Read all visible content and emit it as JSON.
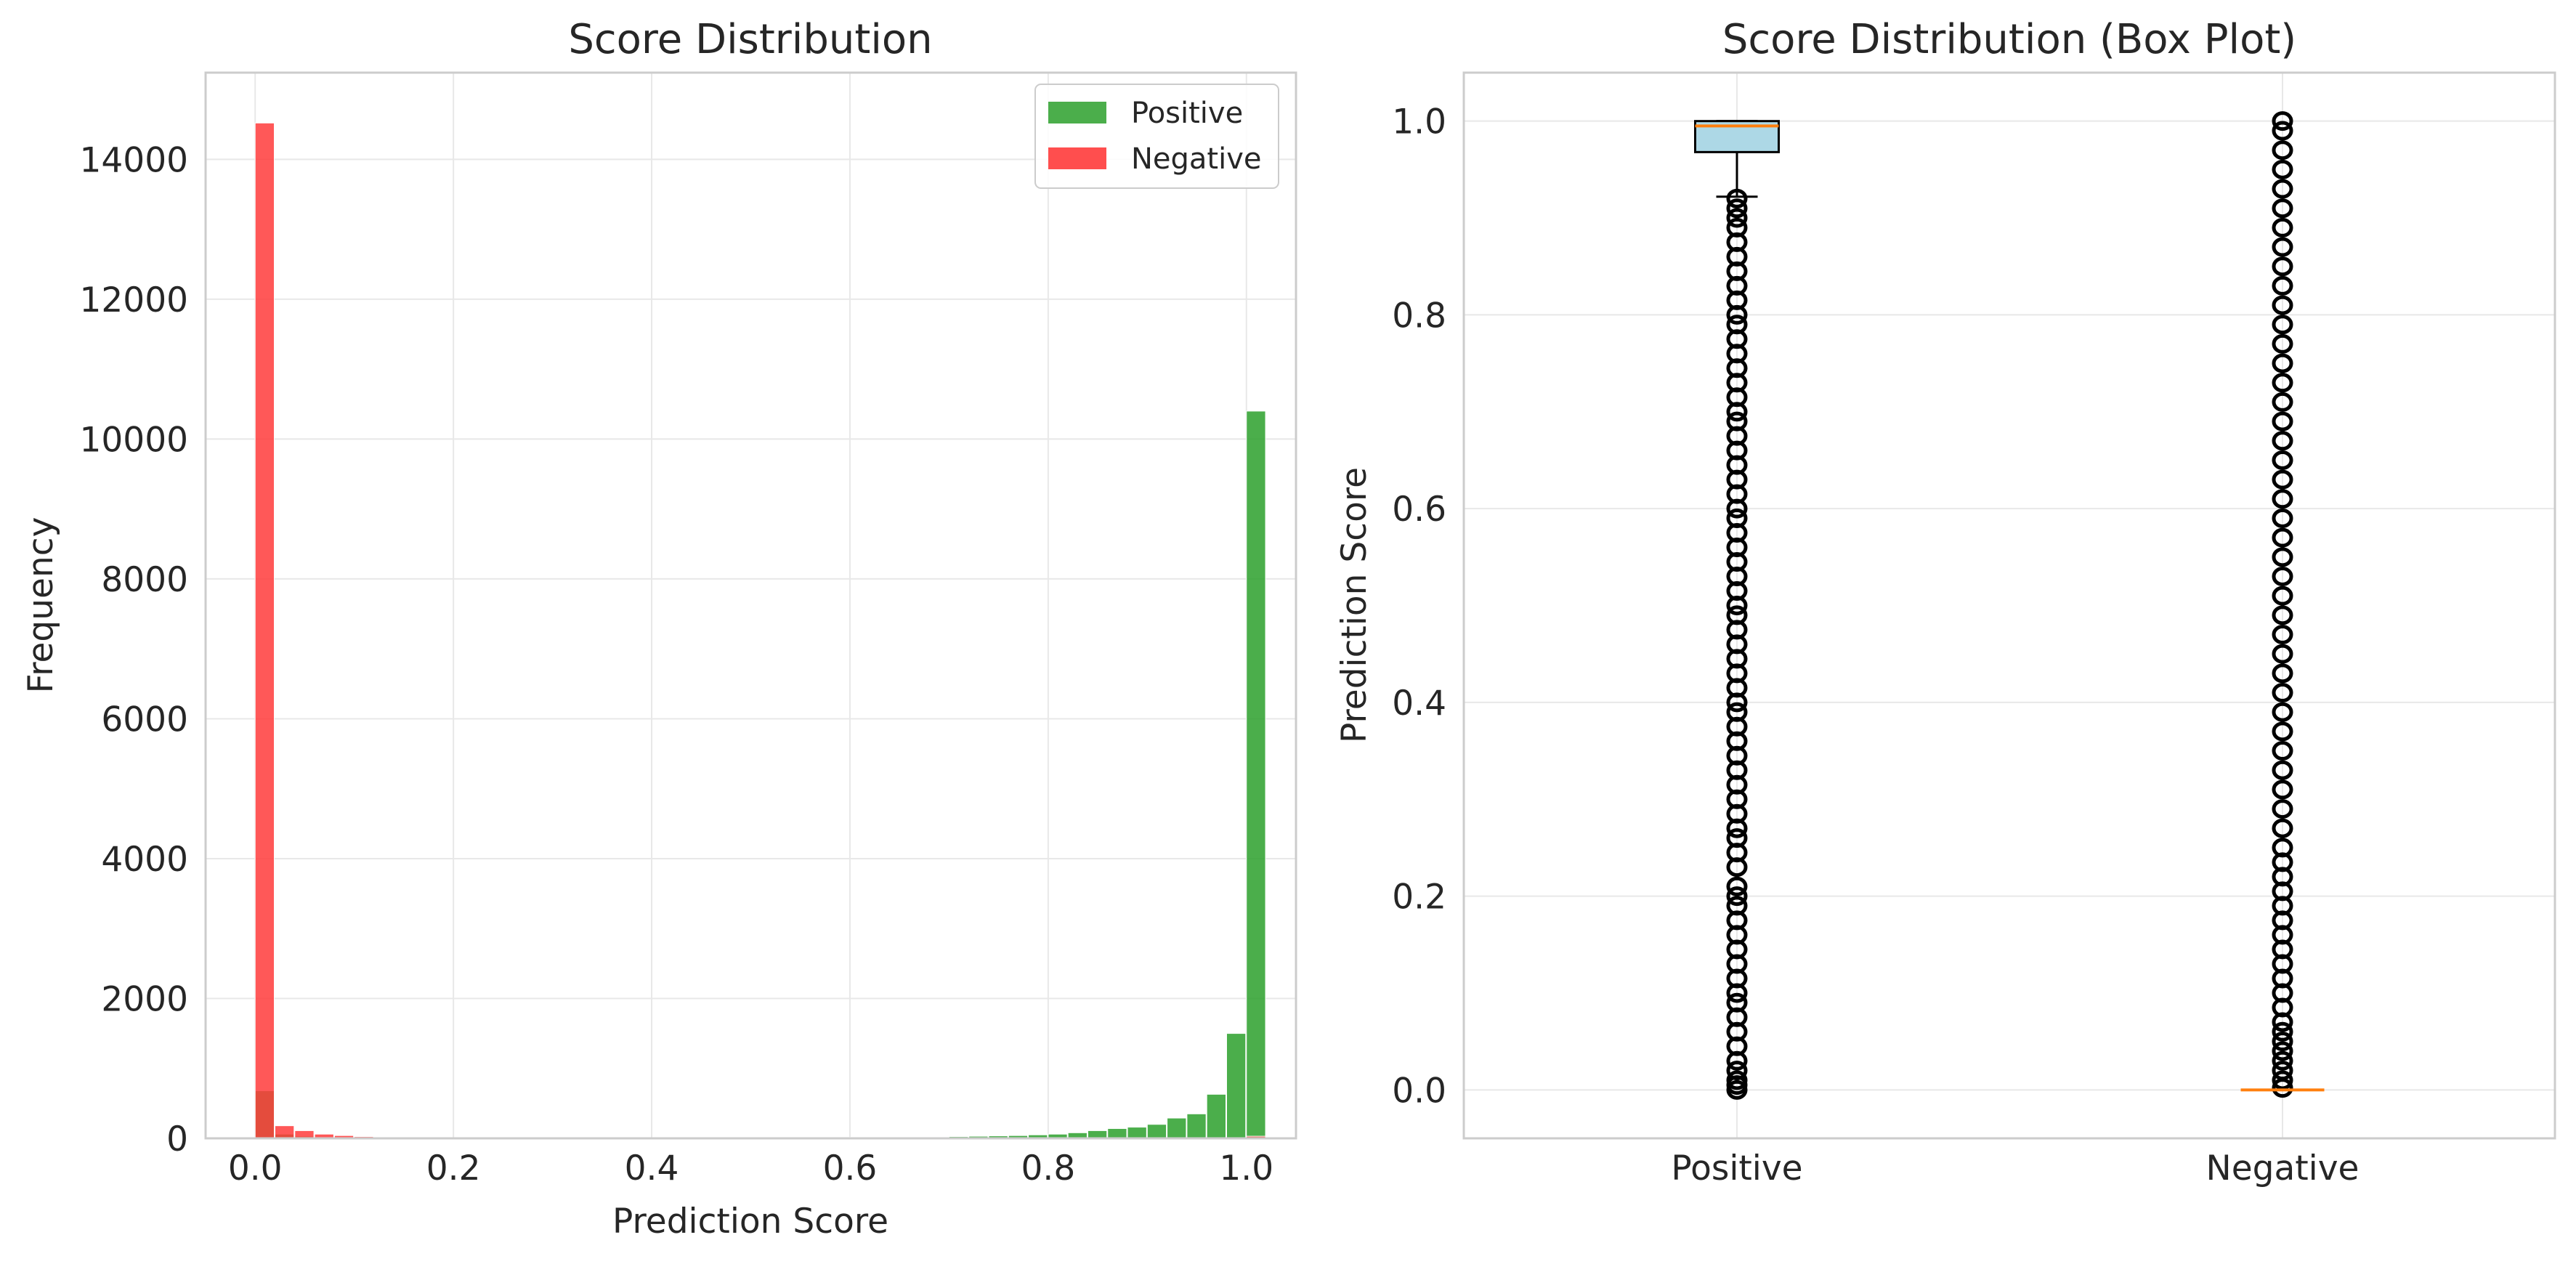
{
  "chart_data": [
    {
      "type": "bar",
      "title": "Score Distribution",
      "xlabel": "Prediction Score",
      "ylabel": "Frequency",
      "xlim": [
        -0.05,
        1.05
      ],
      "ylim": [
        0,
        15240
      ],
      "xticks": [
        "0.0",
        "0.2",
        "0.4",
        "0.6",
        "0.8",
        "1.0"
      ],
      "yticks": [
        "0",
        "2000",
        "4000",
        "6000",
        "8000",
        "10000",
        "12000",
        "14000"
      ],
      "grid": true,
      "legend": {
        "position": "top-right",
        "entries": [
          "Positive",
          "Negative"
        ]
      },
      "bin_edges": [
        0.0,
        0.02,
        0.04,
        0.06,
        0.08,
        0.1,
        0.12,
        0.14,
        0.16,
        0.18,
        0.2,
        0.22,
        0.24,
        0.26,
        0.28,
        0.3,
        0.32,
        0.34,
        0.36,
        0.38,
        0.4,
        0.42,
        0.44,
        0.46,
        0.48,
        0.5,
        0.52,
        0.54,
        0.56,
        0.58,
        0.6,
        0.62,
        0.64,
        0.66,
        0.68,
        0.7,
        0.72,
        0.74,
        0.76,
        0.78,
        0.8,
        0.82,
        0.84,
        0.86,
        0.88,
        0.9,
        0.92,
        0.94,
        0.96,
        0.98,
        1.0
      ],
      "series": [
        {
          "name": "Positive",
          "color": "#2ca02c",
          "values": [
            680,
            60,
            30,
            20,
            15,
            12,
            10,
            10,
            8,
            8,
            8,
            8,
            8,
            8,
            8,
            8,
            8,
            8,
            8,
            8,
            8,
            8,
            8,
            8,
            8,
            10,
            10,
            10,
            12,
            12,
            15,
            15,
            15,
            18,
            20,
            25,
            30,
            35,
            40,
            50,
            60,
            80,
            110,
            140,
            160,
            200,
            290,
            350,
            630,
            1500,
            10400
          ]
        },
        {
          "name": "Negative",
          "color": "#ff3b3b",
          "values": [
            14520,
            180,
            110,
            60,
            40,
            25,
            20,
            15,
            10,
            10,
            8,
            8,
            6,
            6,
            5,
            5,
            5,
            5,
            5,
            5,
            5,
            5,
            5,
            5,
            5,
            5,
            5,
            5,
            5,
            5,
            5,
            5,
            5,
            5,
            5,
            5,
            5,
            5,
            5,
            5,
            5,
            5,
            5,
            5,
            5,
            5,
            5,
            5,
            5,
            5,
            30
          ]
        }
      ]
    },
    {
      "type": "box",
      "title": "Score Distribution (Box Plot)",
      "xlabel": "",
      "ylabel": "Prediction Score",
      "ylim": [
        -0.05,
        1.05
      ],
      "yticks": [
        "0.0",
        "0.2",
        "0.4",
        "0.6",
        "0.8",
        "1.0"
      ],
      "categories": [
        "Positive",
        "Negative"
      ],
      "grid": true,
      "box_color": "#add8e6",
      "median_color": "#ff7f0e",
      "boxes": [
        {
          "name": "Positive",
          "q1": 0.968,
          "median": 0.995,
          "q3": 1.0,
          "whisker_low": 0.922,
          "whisker_high": 1.0,
          "outliers": [
            0.0,
            0.005,
            0.01,
            0.02,
            0.03,
            0.045,
            0.06,
            0.075,
            0.09,
            0.1,
            0.115,
            0.13,
            0.145,
            0.16,
            0.175,
            0.19,
            0.2,
            0.21,
            0.23,
            0.245,
            0.26,
            0.27,
            0.285,
            0.3,
            0.315,
            0.33,
            0.345,
            0.36,
            0.375,
            0.39,
            0.4,
            0.415,
            0.43,
            0.445,
            0.46,
            0.475,
            0.49,
            0.5,
            0.515,
            0.53,
            0.545,
            0.56,
            0.575,
            0.59,
            0.6,
            0.615,
            0.63,
            0.645,
            0.66,
            0.675,
            0.69,
            0.7,
            0.715,
            0.73,
            0.745,
            0.76,
            0.775,
            0.79,
            0.8,
            0.815,
            0.83,
            0.845,
            0.86,
            0.875,
            0.89,
            0.9,
            0.91,
            0.92
          ]
        },
        {
          "name": "Negative",
          "q1": 0.0,
          "median": 0.0,
          "q3": 0.0,
          "whisker_low": 0.0,
          "whisker_high": 0.0,
          "outliers": [
            0.002,
            0.01,
            0.02,
            0.03,
            0.04,
            0.05,
            0.06,
            0.07,
            0.085,
            0.1,
            0.115,
            0.13,
            0.145,
            0.16,
            0.175,
            0.19,
            0.205,
            0.22,
            0.235,
            0.25,
            0.27,
            0.29,
            0.31,
            0.33,
            0.35,
            0.37,
            0.39,
            0.41,
            0.43,
            0.45,
            0.47,
            0.49,
            0.51,
            0.53,
            0.55,
            0.57,
            0.59,
            0.61,
            0.63,
            0.65,
            0.67,
            0.69,
            0.71,
            0.73,
            0.75,
            0.77,
            0.79,
            0.81,
            0.83,
            0.85,
            0.87,
            0.89,
            0.91,
            0.93,
            0.95,
            0.97,
            0.99,
            1.0
          ]
        }
      ]
    }
  ]
}
